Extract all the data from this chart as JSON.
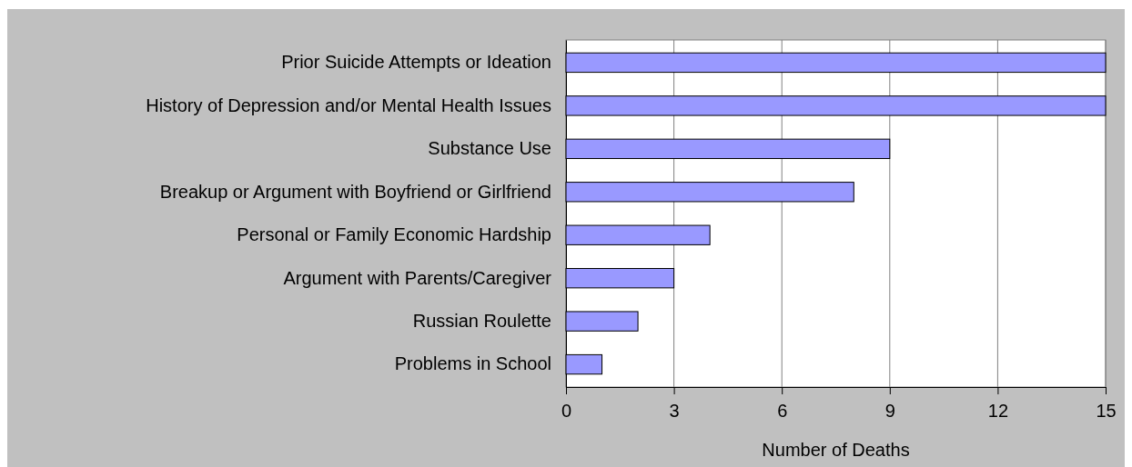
{
  "chart_data": {
    "type": "bar",
    "orientation": "horizontal",
    "xlabel": "Number of Deaths",
    "categories": [
      "Prior Suicide Attempts or Ideation",
      "History of Depression and/or Mental Health Issues",
      "Substance Use",
      "Breakup or Argument with Boyfriend or Girlfriend",
      "Personal or Family Economic Hardship",
      "Argument with Parents/Caregiver",
      "Russian Roulette",
      "Problems in School"
    ],
    "values": [
      15,
      15,
      9,
      8,
      4,
      3,
      2,
      1
    ],
    "color": "#9999ff",
    "xlim": [
      0,
      15
    ],
    "xticks": [
      0,
      3,
      6,
      9,
      12,
      15
    ],
    "grid": "x"
  }
}
